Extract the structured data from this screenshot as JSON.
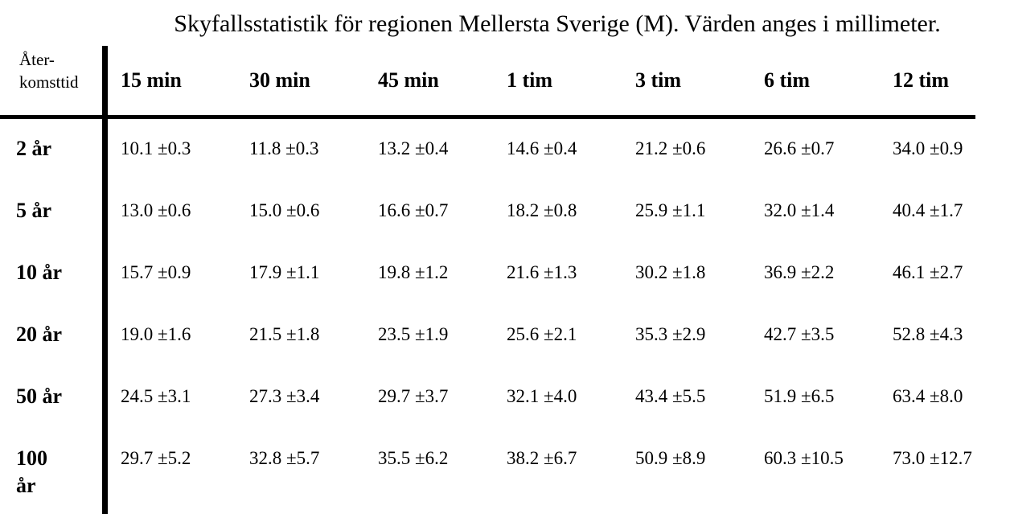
{
  "title": "Skyfallsstatistik för regionen Mellersta Sverige (M). Värden anges i millimeter.",
  "table": {
    "corner_label": "Åter-\nkomsttid",
    "column_headers": [
      "15 min",
      "30 min",
      "45 min",
      "1 tim",
      "3 tim",
      "6 tim",
      "12 tim"
    ],
    "rows": [
      {
        "label": "2 år",
        "values": [
          "10.1 ±0.3",
          "11.8 ±0.3",
          "13.2 ±0.4",
          "14.6 ±0.4",
          "21.2 ±0.6",
          "26.6 ±0.7",
          "34.0 ±0.9"
        ]
      },
      {
        "label": "5 år",
        "values": [
          "13.0 ±0.6",
          "15.0 ±0.6",
          "16.6 ±0.7",
          "18.2 ±0.8",
          "25.9 ±1.1",
          "32.0 ±1.4",
          "40.4 ±1.7"
        ]
      },
      {
        "label": "10 år",
        "values": [
          "15.7 ±0.9",
          "17.9 ±1.1",
          "19.8 ±1.2",
          "21.6 ±1.3",
          "30.2 ±1.8",
          "36.9 ±2.2",
          "46.1 ±2.7"
        ]
      },
      {
        "label": "20 år",
        "values": [
          "19.0 ±1.6",
          "21.5 ±1.8",
          "23.5 ±1.9",
          "25.6 ±2.1",
          "35.3 ±2.9",
          "42.7 ±3.5",
          "52.8 ±4.3"
        ]
      },
      {
        "label": "50 år",
        "values": [
          "24.5 ±3.1",
          "27.3 ±3.4",
          "29.7 ±3.7",
          "32.1 ±4.0",
          "43.4 ±5.5",
          "51.9 ±6.5",
          "63.4 ±8.0"
        ]
      },
      {
        "label": "100\når",
        "values": [
          "29.7 ±5.2",
          "32.8 ±5.7",
          "35.5 ±6.2",
          "38.2 ±6.7",
          "50.9 ±8.9",
          "60.3 ±10.5",
          "73.0 ±12.7"
        ]
      }
    ]
  }
}
